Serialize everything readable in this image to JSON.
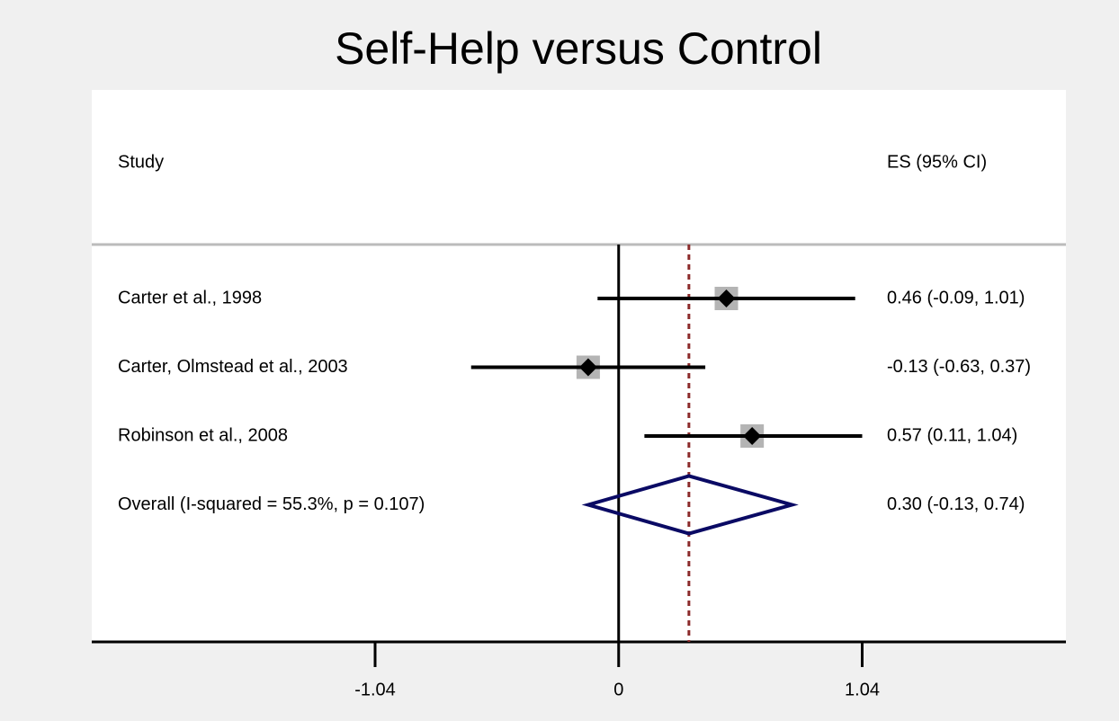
{
  "chart_data": {
    "type": "forest",
    "title": "Self-Help versus Control",
    "study_header": "Study",
    "es_header": "ES (95% CI)",
    "studies": [
      {
        "name": "Carter et al., 1998",
        "es": 0.46,
        "lower": -0.09,
        "upper": 1.01,
        "es_label": "0.46 (-0.09, 1.01)"
      },
      {
        "name": "Carter, Olmstead et al., 2003",
        "es": -0.13,
        "lower": -0.63,
        "upper": 0.37,
        "es_label": "-0.13 (-0.63, 0.37)"
      },
      {
        "name": "Robinson et al., 2008",
        "es": 0.57,
        "lower": 0.11,
        "upper": 1.04,
        "es_label": "0.57 (0.11, 1.04)"
      }
    ],
    "overall": {
      "name": "Overall  (I-squared = 55.3%, p = 0.107)",
      "es": 0.3,
      "lower": -0.13,
      "upper": 0.74,
      "es_label": "0.30 (-0.13, 0.74)"
    },
    "xlim": [
      -2.25,
      1.91
    ],
    "xticks": [
      -1.04,
      0,
      1.04
    ],
    "marker_color": "#000000",
    "box_color": "#b4b4b4",
    "diamond_color": "#0a0a64",
    "overall_line_color": "#8b2a2a"
  }
}
